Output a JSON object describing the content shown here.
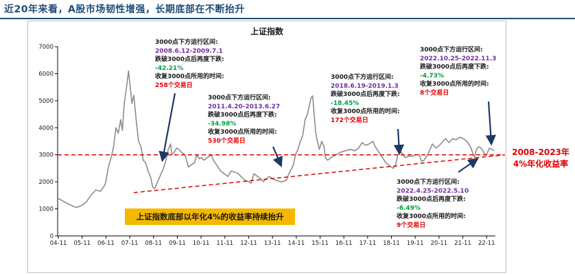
{
  "header": {
    "title": "近20年来看，A股市场韧性增强，长期底部在不断抬升"
  },
  "chart_data": {
    "type": "line",
    "title": "上证指数",
    "xlabel": "",
    "ylabel": "",
    "ylim": [
      0,
      7000
    ],
    "yticks": [
      "0",
      "1000",
      "2000",
      "3000",
      "4000",
      "5000",
      "6000",
      "7000"
    ],
    "xticks": [
      "04-11",
      "05-11",
      "06-11",
      "07-11",
      "08-11",
      "09-11",
      "10-11",
      "11-11",
      "12-11",
      "13-11",
      "14-11",
      "15-11",
      "16-11",
      "17-11",
      "18-11",
      "19-11",
      "20-11",
      "21-11",
      "22-11"
    ],
    "xlim": [
      2004.8,
      2023.2
    ],
    "grid": false,
    "line_color": "#8c8c8c",
    "series": [
      {
        "name": "",
        "x": [
          2004.8,
          2005.0,
          2005.2,
          2005.45,
          2005.6,
          2005.85,
          2006.0,
          2006.2,
          2006.4,
          2006.6,
          2006.8,
          2006.95,
          2007.05,
          2007.15,
          2007.25,
          2007.35,
          2007.45,
          2007.52,
          2007.6,
          2007.68,
          2007.78,
          2007.85,
          2007.92,
          2008.0,
          2008.1,
          2008.2,
          2008.3,
          2008.4,
          2008.5,
          2008.6,
          2008.7,
          2008.8,
          2008.88,
          2008.95,
          2009.05,
          2009.15,
          2009.25,
          2009.35,
          2009.45,
          2009.55,
          2009.6,
          2009.7,
          2009.8,
          2009.9,
          2010.0,
          2010.15,
          2010.3,
          2010.45,
          2010.55,
          2010.65,
          2010.75,
          2010.85,
          2010.95,
          2011.1,
          2011.25,
          2011.35,
          2011.5,
          2011.65,
          2011.8,
          2011.95,
          2012.1,
          2012.25,
          2012.4,
          2012.55,
          2012.7,
          2012.85,
          2012.93,
          2013.05,
          2013.2,
          2013.35,
          2013.45,
          2013.55,
          2013.7,
          2013.85,
          2014.0,
          2014.2,
          2014.4,
          2014.55,
          2014.7,
          2014.8,
          2014.9,
          2015.0,
          2015.1,
          2015.2,
          2015.3,
          2015.4,
          2015.45,
          2015.52,
          2015.58,
          2015.65,
          2015.72,
          2015.8,
          2015.9,
          2016.0,
          2016.05,
          2016.15,
          2016.3,
          2016.5,
          2016.7,
          2016.9,
          2017.1,
          2017.3,
          2017.45,
          2017.6,
          2017.75,
          2017.9,
          2018.05,
          2018.15,
          2018.3,
          2018.45,
          2018.6,
          2018.75,
          2018.9,
          2019.0,
          2019.1,
          2019.25,
          2019.4,
          2019.55,
          2019.7,
          2019.85,
          2020.0,
          2020.1,
          2020.2,
          2020.35,
          2020.5,
          2020.55,
          2020.7,
          2020.85,
          2021.0,
          2021.1,
          2021.25,
          2021.4,
          2021.55,
          2021.7,
          2021.85,
          2022.0,
          2022.15,
          2022.25,
          2022.32,
          2022.4,
          2022.5,
          2022.6,
          2022.7,
          2022.8,
          2022.85,
          2022.95,
          2023.05,
          2023.15
        ],
        "y": [
          1400,
          1300,
          1200,
          1100,
          1050,
          1150,
          1250,
          1500,
          1700,
          1650,
          1900,
          2600,
          2900,
          3300,
          4000,
          3800,
          4300,
          3900,
          4900,
          5400,
          6100,
          5500,
          4900,
          5200,
          4300,
          3500,
          3300,
          2800,
          2700,
          2400,
          2200,
          1800,
          1750,
          1900,
          2100,
          2300,
          2500,
          2800,
          3200,
          3400,
          3000,
          3100,
          3250,
          3200,
          3100,
          3000,
          2550,
          2650,
          2700,
          3000,
          2850,
          2900,
          2800,
          2900,
          3000,
          2800,
          2600,
          2400,
          2300,
          2200,
          2400,
          2350,
          2300,
          2150,
          2050,
          2000,
          1950,
          2300,
          2200,
          2100,
          2000,
          2100,
          2200,
          2100,
          2050,
          2000,
          2050,
          2350,
          2600,
          3000,
          3200,
          3500,
          3700,
          4300,
          4500,
          4900,
          5100,
          5178,
          4500,
          3800,
          3500,
          3200,
          3500,
          3300,
          2900,
          2800,
          2900,
          3000,
          3100,
          3150,
          3200,
          3150,
          3250,
          3450,
          3350,
          3400,
          3500,
          3300,
          3100,
          2900,
          2700,
          2600,
          2500,
          2600,
          3000,
          3100,
          2900,
          2950,
          2950,
          3000,
          3000,
          2750,
          2800,
          3000,
          3300,
          3400,
          3250,
          3350,
          3500,
          3600,
          3450,
          3600,
          3550,
          3650,
          3600,
          3500,
          3300,
          3050,
          2900,
          3200,
          3300,
          3250,
          3100,
          2980,
          3050,
          3250,
          3200,
          3150
        ]
      }
    ],
    "reference_lines": [
      {
        "type": "horizontal",
        "y": 3000,
        "style": "dashed",
        "color": "#e00000"
      },
      {
        "type": "trend",
        "points": [
          [
            2008.0,
            1600
          ],
          [
            2023.2,
            2950
          ]
        ],
        "style": "dashed",
        "color": "#e00000"
      }
    ],
    "annotations": [
      {
        "line1": "3000点下方运行区间:",
        "period": "2008.6.12-2009.7.1",
        "line3": "跌破3000点后再度下跌:",
        "drop": "-42.21%",
        "line5": "收复3000点所用的时间:",
        "days": "258个交易日"
      },
      {
        "line1": "3000点下方运行区间:",
        "period": "2011.4.20-2013.6.27",
        "line3": "跌破3000点后再度下跌:",
        "drop": "-34.98%",
        "line5": "收复3000点所用的时间:",
        "days": "530个交易日"
      },
      {
        "line1": "3000点下方运行区间:",
        "period": "2018.6.19-2019.1.3",
        "line3": "跌破3000点后再度下跌:",
        "drop": "-18.45%",
        "line5": "收复3000点所用的时间:",
        "days": "172个交易日"
      },
      {
        "line1": "3000点下方运行区间:",
        "period": "2022.10.25-2022.11.3",
        "line3": "跌破3000点后再度下跌:",
        "drop": "-4.73%",
        "line5": "收复3000点所用的时间:",
        "days": "8个交易日"
      },
      {
        "line1": "3000点下方运行区间:",
        "period": "2022.4.25-2022.5.10",
        "line3": "跌破3000点后再度下跌:",
        "drop": "-6.49%",
        "line5": "收复3000点所用的时间:",
        "days": "9个交易日"
      }
    ],
    "banner": "上证指数底部以年化4%的收益率持续抬升",
    "right_label": {
      "line1": "2008-2023年",
      "line2": "4%年化收益率"
    },
    "colors": {
      "period": "#7030a0",
      "drop": "#00a040",
      "days": "#e00000",
      "banner_bg": "#f5b800",
      "reference": "#e00000"
    }
  }
}
